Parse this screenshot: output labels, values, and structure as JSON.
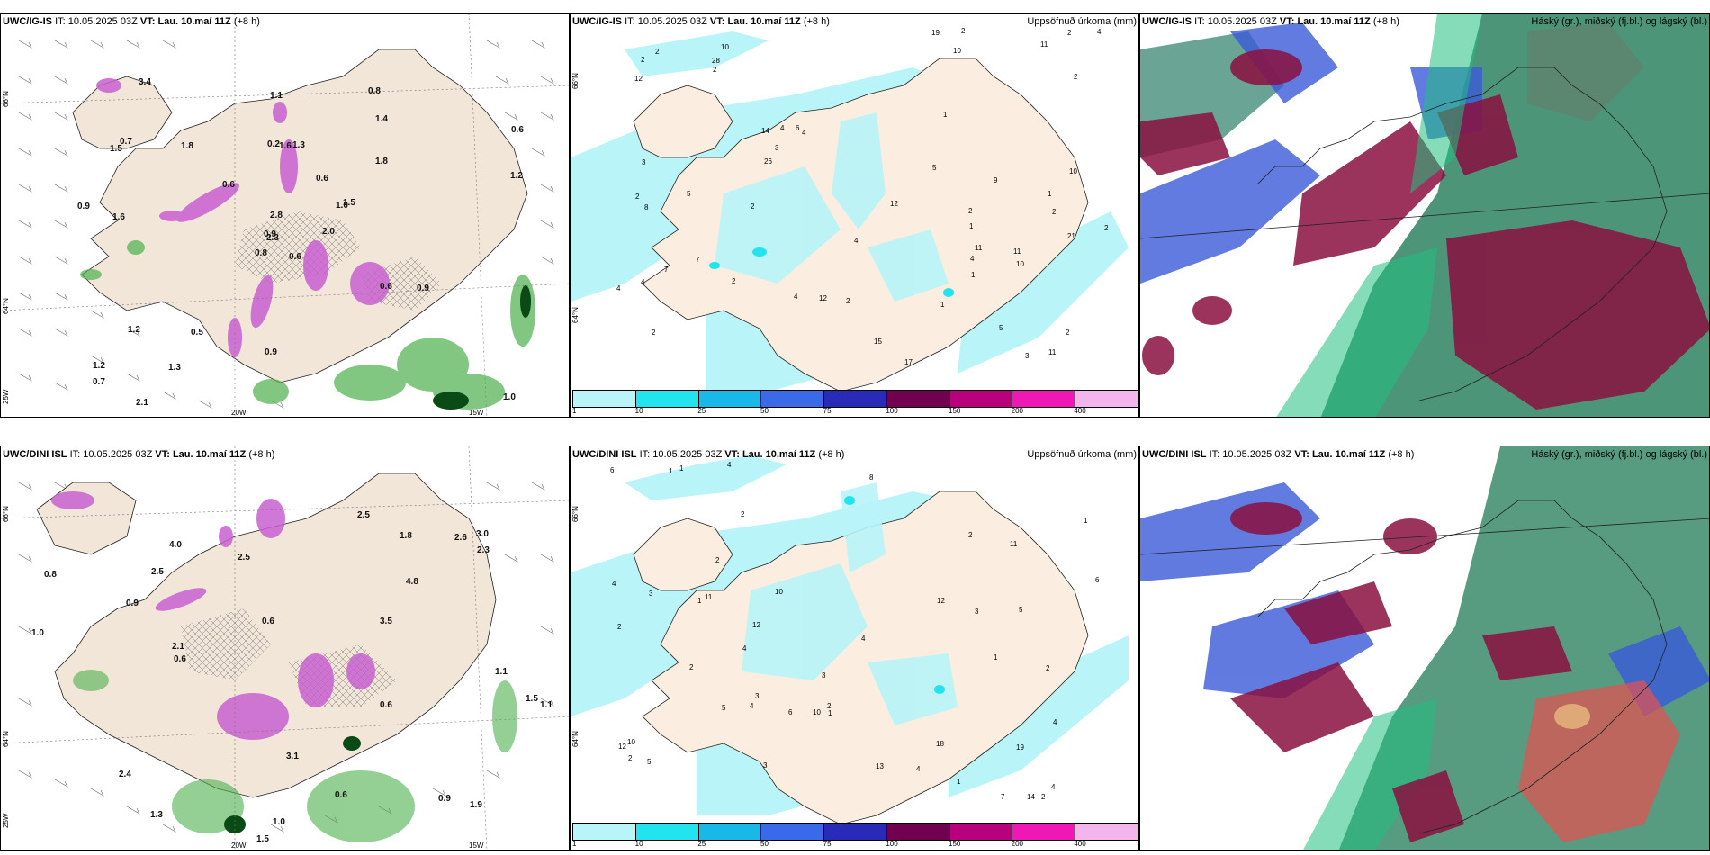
{
  "rows": [
    {
      "model": "UWC/IG-IS",
      "it_label": "IT:",
      "it_value": "10.05.2025 03Z",
      "vt_label": "VT:",
      "vt_value": "Lau. 10.maí 11Z",
      "lead": "(+8 h)"
    },
    {
      "model": "UWC/DINI ISL",
      "it_label": "IT:",
      "it_value": "10.05.2025 03Z",
      "vt_label": "VT:",
      "vt_value": "Lau. 10.maí 11Z",
      "lead": "(+8 h)"
    }
  ],
  "titles": {
    "precip": "Uppsöfnuð úrkoma (mm)",
    "cloud": "Háský (gr.), miðský (fj.bl.) og lágský (bl.)"
  },
  "axis_labels": {
    "lat66": "66°N",
    "lat64": "64°N",
    "lon20": "20W",
    "lon15": "15W",
    "lon25": "25W"
  },
  "colorbar": {
    "ticks": [
      "1",
      "10",
      "25",
      "50",
      "75",
      "100",
      "150",
      "200",
      "400"
    ],
    "colors": [
      "#b8f4f8",
      "#22e4ee",
      "#18b8e8",
      "#3a6ae8",
      "#2a2ab8",
      "#720050",
      "#b8007c",
      "#f018b4",
      "#f4b4ec"
    ]
  },
  "panel1_labels": [
    "0.6",
    "1.5",
    "2.3",
    "1.2",
    "1.0",
    "0.5",
    "0.8",
    "1.3",
    "1.4",
    "2.0",
    "3.4",
    "1.0",
    "1.6",
    "0.6",
    "0.8",
    "1.8",
    "2.1",
    "0.2",
    "0.6",
    "1.2",
    "0.6",
    "0.7",
    "1.3",
    "1.6",
    "1.5",
    "0.9",
    "0.7",
    "1.1",
    "0.9",
    "0.6",
    "1.2",
    "0.9",
    "0.9",
    "2.8",
    "1.8"
  ],
  "panel2_labels": [
    "1",
    "2",
    "2",
    "10",
    "4",
    "5",
    "4",
    "10",
    "14",
    "17",
    "12",
    "2",
    "2",
    "2",
    "4",
    "10",
    "4",
    "12",
    "6",
    "7",
    "4",
    "11",
    "26",
    "21",
    "19",
    "28",
    "11",
    "8",
    "2",
    "9",
    "15",
    "1",
    "3",
    "2",
    "1",
    "10",
    "4",
    "5",
    "2",
    "7",
    "2",
    "2",
    "11",
    "12",
    "11",
    "2",
    "4",
    "2",
    "5",
    "3",
    "2",
    "4",
    "2",
    "2",
    "1",
    "3",
    "1"
  ],
  "panel5_labels": [
    "3",
    "1",
    "1",
    "1",
    "2",
    "2",
    "10",
    "4",
    "4",
    "3",
    "5",
    "8",
    "6",
    "7",
    "12",
    "18",
    "4",
    "6",
    "1",
    "10",
    "14",
    "11",
    "4",
    "5",
    "19",
    "12",
    "13",
    "10",
    "11",
    "12",
    "3",
    "6",
    "5",
    "4",
    "2",
    "4",
    "3",
    "1",
    "2",
    "3",
    "2",
    "4",
    "2",
    "1",
    "1",
    "2",
    "2",
    "2",
    "4"
  ],
  "panel4_labels": [
    "0.8",
    "2.5",
    "3.5",
    "1.0",
    "2.6",
    "1.5",
    "0.6",
    "0.6",
    "3.0",
    "1.1",
    "1.5",
    "4.0",
    "4.8",
    "2.4",
    "1.0",
    "1.3",
    "2.1",
    "2.5",
    "1.9",
    "0.6",
    "0.9",
    "1.1",
    "0.6",
    "3.1",
    "1.8",
    "0.9",
    "2.3",
    "2.5"
  ]
}
